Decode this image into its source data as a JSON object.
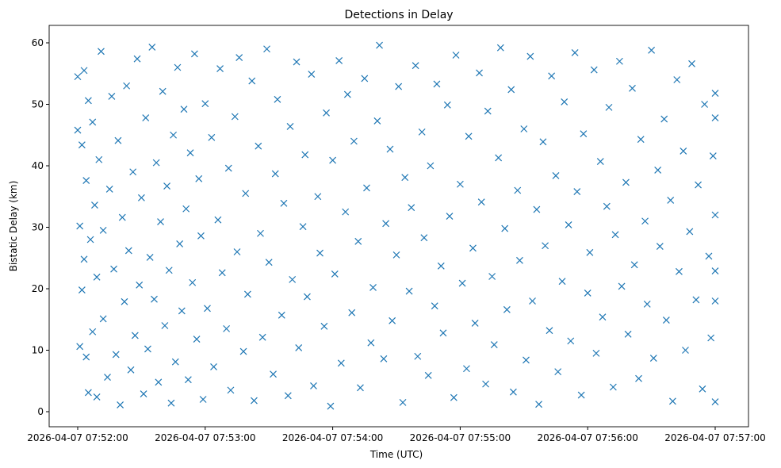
{
  "chart_data": {
    "type": "scatter",
    "title": "Detections in Delay",
    "xlabel": "Time (UTC)",
    "ylabel": "Bistatic Delay (km)",
    "marker": "x",
    "color": "#1f77b4",
    "x_units": "seconds after 2026-04-07 07:52:00",
    "xlim": [
      -24.6,
      302
    ],
    "ylim": [
      -2.5,
      62.5
    ],
    "x_ticks": [
      0,
      60,
      120,
      180,
      240,
      300
    ],
    "x_tick_labels": [
      "2026-04-07 07:52:00",
      "2026-04-07 07:53:00",
      "2026-04-07 07:54:00",
      "2026-04-07 07:55:00",
      "2026-04-07 07:56:00",
      "2026-04-07 07:57:00"
    ],
    "y_ticks": [
      0,
      10,
      20,
      30,
      40,
      50,
      60
    ],
    "y_tick_labels": [
      "0",
      "10",
      "20",
      "30",
      "40",
      "50",
      "60"
    ],
    "grid": false,
    "points": [
      [
        0,
        54.5
      ],
      [
        0,
        45.8
      ],
      [
        1,
        30.2
      ],
      [
        1,
        10.6
      ],
      [
        2,
        19.8
      ],
      [
        2,
        43.4
      ],
      [
        3,
        55.5
      ],
      [
        3,
        24.8
      ],
      [
        4,
        8.9
      ],
      [
        4,
        37.6
      ],
      [
        5,
        3.1
      ],
      [
        5,
        50.6
      ],
      [
        6,
        28.0
      ],
      [
        7,
        13.0
      ],
      [
        7,
        47.1
      ],
      [
        8,
        33.6
      ],
      [
        9,
        21.9
      ],
      [
        9,
        2.4
      ],
      [
        10,
        41.0
      ],
      [
        11,
        58.6
      ],
      [
        12,
        15.1
      ],
      [
        12,
        29.5
      ],
      [
        14,
        5.6
      ],
      [
        15,
        36.2
      ],
      [
        16,
        51.3
      ],
      [
        17,
        23.2
      ],
      [
        18,
        9.3
      ],
      [
        19,
        44.1
      ],
      [
        20,
        1.1
      ],
      [
        21,
        31.6
      ],
      [
        22,
        17.9
      ],
      [
        23,
        53.0
      ],
      [
        24,
        26.2
      ],
      [
        25,
        6.8
      ],
      [
        26,
        39.0
      ],
      [
        27,
        12.4
      ],
      [
        28,
        57.4
      ],
      [
        29,
        20.6
      ],
      [
        30,
        34.8
      ],
      [
        31,
        2.9
      ],
      [
        32,
        47.8
      ],
      [
        33,
        10.2
      ],
      [
        34,
        25.1
      ],
      [
        35,
        59.3
      ],
      [
        36,
        18.3
      ],
      [
        37,
        40.5
      ],
      [
        38,
        4.8
      ],
      [
        39,
        30.9
      ],
      [
        40,
        52.1
      ],
      [
        41,
        14.0
      ],
      [
        42,
        36.7
      ],
      [
        43,
        23.0
      ],
      [
        44,
        1.4
      ],
      [
        45,
        45.0
      ],
      [
        46,
        8.1
      ],
      [
        47,
        56.0
      ],
      [
        48,
        27.3
      ],
      [
        49,
        16.4
      ],
      [
        50,
        49.2
      ],
      [
        51,
        33.0
      ],
      [
        52,
        5.2
      ],
      [
        53,
        42.1
      ],
      [
        54,
        21.0
      ],
      [
        55,
        58.2
      ],
      [
        56,
        11.8
      ],
      [
        57,
        37.9
      ],
      [
        58,
        28.6
      ],
      [
        59,
        2.0
      ],
      [
        60,
        50.1
      ],
      [
        61,
        16.8
      ],
      [
        63,
        44.6
      ],
      [
        64,
        7.3
      ],
      [
        66,
        31.2
      ],
      [
        67,
        55.8
      ],
      [
        68,
        22.6
      ],
      [
        70,
        13.5
      ],
      [
        71,
        39.6
      ],
      [
        72,
        3.5
      ],
      [
        74,
        48.0
      ],
      [
        75,
        26.0
      ],
      [
        76,
        57.6
      ],
      [
        78,
        9.8
      ],
      [
        79,
        35.5
      ],
      [
        80,
        19.1
      ],
      [
        82,
        53.8
      ],
      [
        83,
        1.8
      ],
      [
        85,
        43.2
      ],
      [
        86,
        29.0
      ],
      [
        87,
        12.1
      ],
      [
        89,
        59.0
      ],
      [
        90,
        24.3
      ],
      [
        92,
        6.1
      ],
      [
        93,
        38.7
      ],
      [
        94,
        50.8
      ],
      [
        96,
        15.7
      ],
      [
        97,
        33.9
      ],
      [
        99,
        2.6
      ],
      [
        100,
        46.4
      ],
      [
        101,
        21.5
      ],
      [
        103,
        56.9
      ],
      [
        104,
        10.4
      ],
      [
        106,
        30.1
      ],
      [
        107,
        41.8
      ],
      [
        108,
        18.7
      ],
      [
        110,
        54.9
      ],
      [
        111,
        4.2
      ],
      [
        113,
        35.0
      ],
      [
        114,
        25.8
      ],
      [
        116,
        13.9
      ],
      [
        117,
        48.6
      ],
      [
        119,
        0.9
      ],
      [
        120,
        40.9
      ],
      [
        121,
        22.4
      ],
      [
        123,
        57.1
      ],
      [
        124,
        7.9
      ],
      [
        126,
        32.5
      ],
      [
        127,
        51.6
      ],
      [
        129,
        16.1
      ],
      [
        130,
        44.0
      ],
      [
        132,
        27.7
      ],
      [
        133,
        3.9
      ],
      [
        135,
        54.2
      ],
      [
        136,
        36.4
      ],
      [
        138,
        11.2
      ],
      [
        139,
        20.2
      ],
      [
        141,
        47.3
      ],
      [
        142,
        59.6
      ],
      [
        144,
        8.6
      ],
      [
        145,
        30.6
      ],
      [
        147,
        42.7
      ],
      [
        148,
        14.8
      ],
      [
        150,
        25.5
      ],
      [
        151,
        52.9
      ],
      [
        153,
        1.5
      ],
      [
        154,
        38.1
      ],
      [
        156,
        19.6
      ],
      [
        157,
        33.2
      ],
      [
        159,
        56.3
      ],
      [
        160,
        9.0
      ],
      [
        162,
        45.5
      ],
      [
        163,
        28.3
      ],
      [
        165,
        5.9
      ],
      [
        166,
        40.0
      ],
      [
        168,
        17.2
      ],
      [
        169,
        53.3
      ],
      [
        171,
        23.7
      ],
      [
        172,
        12.8
      ],
      [
        174,
        49.9
      ],
      [
        175,
        31.8
      ],
      [
        177,
        2.3
      ],
      [
        178,
        58.0
      ],
      [
        180,
        37.0
      ],
      [
        181,
        20.9
      ],
      [
        183,
        7.0
      ],
      [
        184,
        44.8
      ],
      [
        186,
        26.6
      ],
      [
        187,
        14.4
      ],
      [
        189,
        55.1
      ],
      [
        190,
        34.1
      ],
      [
        192,
        4.5
      ],
      [
        193,
        48.9
      ],
      [
        195,
        22.0
      ],
      [
        196,
        10.9
      ],
      [
        198,
        41.3
      ],
      [
        199,
        59.2
      ],
      [
        201,
        29.8
      ],
      [
        202,
        16.6
      ],
      [
        204,
        52.4
      ],
      [
        205,
        3.2
      ],
      [
        207,
        36.0
      ],
      [
        208,
        24.6
      ],
      [
        210,
        46.0
      ],
      [
        211,
        8.4
      ],
      [
        213,
        57.8
      ],
      [
        214,
        18.0
      ],
      [
        216,
        32.9
      ],
      [
        217,
        1.2
      ],
      [
        219,
        43.9
      ],
      [
        220,
        27.0
      ],
      [
        222,
        13.2
      ],
      [
        223,
        54.6
      ],
      [
        225,
        38.4
      ],
      [
        226,
        6.5
      ],
      [
        228,
        21.2
      ],
      [
        229,
        50.4
      ],
      [
        231,
        30.4
      ],
      [
        232,
        11.5
      ],
      [
        234,
        58.4
      ],
      [
        235,
        35.8
      ],
      [
        237,
        2.7
      ],
      [
        238,
        45.2
      ],
      [
        240,
        19.3
      ],
      [
        241,
        25.9
      ],
      [
        243,
        55.6
      ],
      [
        244,
        9.5
      ],
      [
        246,
        40.7
      ],
      [
        247,
        15.4
      ],
      [
        249,
        33.4
      ],
      [
        250,
        49.5
      ],
      [
        252,
        4.0
      ],
      [
        253,
        28.8
      ],
      [
        255,
        57.0
      ],
      [
        256,
        20.4
      ],
      [
        258,
        37.3
      ],
      [
        259,
        12.6
      ],
      [
        261,
        52.6
      ],
      [
        262,
        23.9
      ],
      [
        264,
        5.4
      ],
      [
        265,
        44.3
      ],
      [
        267,
        31.0
      ],
      [
        268,
        17.5
      ],
      [
        270,
        58.8
      ],
      [
        271,
        8.7
      ],
      [
        273,
        39.3
      ],
      [
        274,
        26.9
      ],
      [
        276,
        47.6
      ],
      [
        277,
        14.9
      ],
      [
        279,
        34.4
      ],
      [
        280,
        1.7
      ],
      [
        282,
        54.0
      ],
      [
        283,
        22.8
      ],
      [
        285,
        42.4
      ],
      [
        286,
        10.0
      ],
      [
        288,
        29.3
      ],
      [
        289,
        56.6
      ],
      [
        291,
        18.2
      ],
      [
        292,
        36.9
      ],
      [
        294,
        3.7
      ],
      [
        295,
        50.0
      ],
      [
        297,
        25.3
      ],
      [
        298,
        12.0
      ],
      [
        299,
        41.6
      ],
      [
        300,
        32.0
      ],
      [
        300,
        18.0
      ],
      [
        300,
        51.8
      ],
      [
        300,
        1.6
      ],
      [
        300,
        47.8
      ],
      [
        300,
        22.9
      ]
    ]
  }
}
